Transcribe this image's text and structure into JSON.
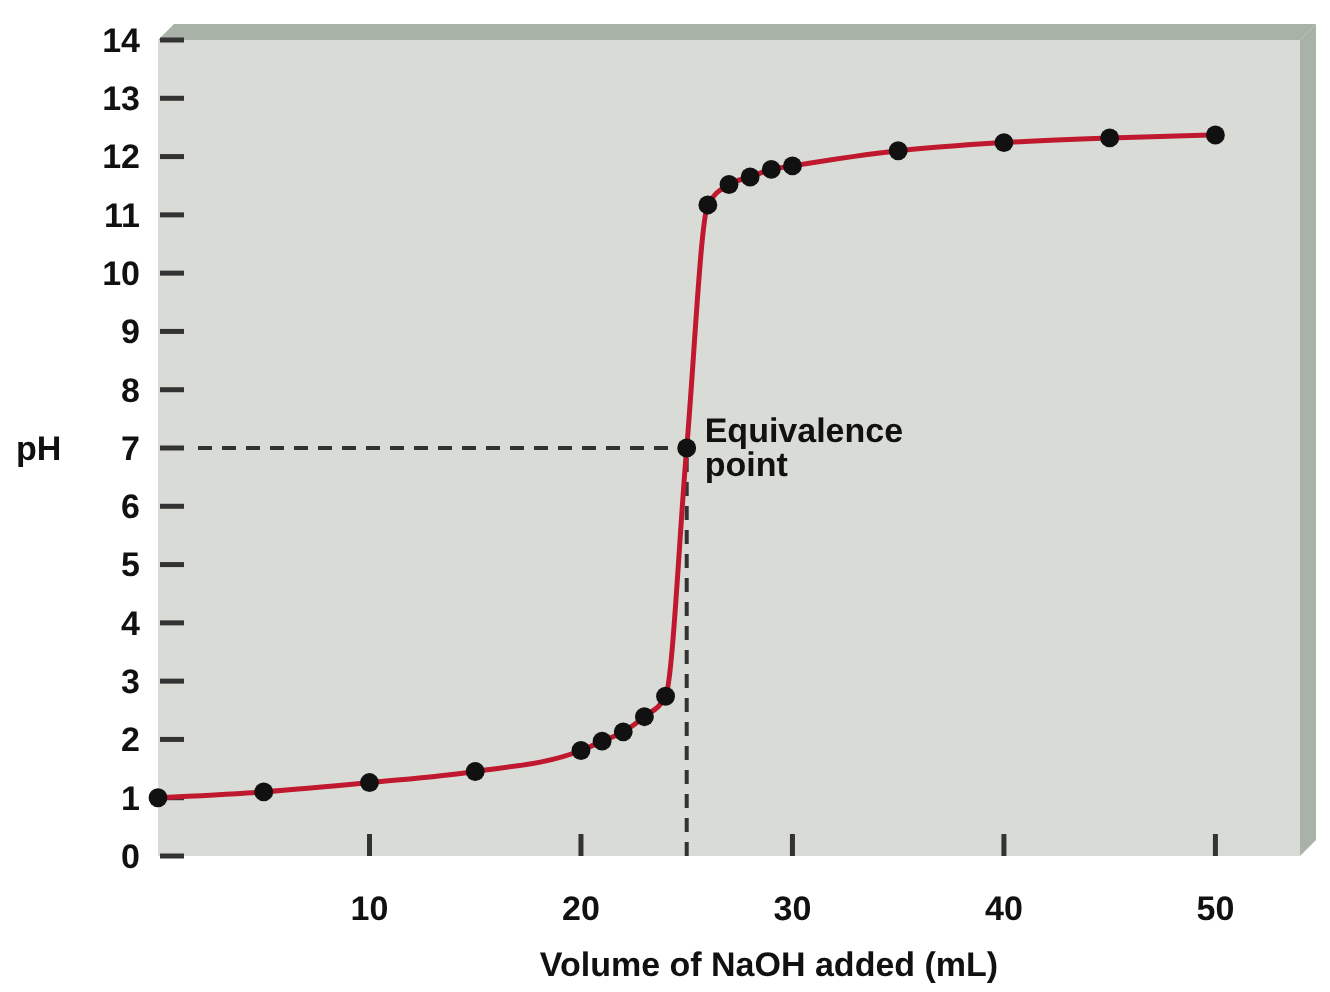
{
  "chart_data": {
    "type": "line",
    "xlabel": "Volume of NaOH added (mL)",
    "ylabel": "pH",
    "x": [
      0,
      5,
      10,
      15,
      20,
      21,
      22,
      23,
      24,
      25,
      26,
      27,
      28,
      29,
      30,
      35,
      40,
      45,
      50
    ],
    "series": [
      {
        "color": "#c0182f",
        "values": [
          1.0,
          1.1,
          1.26,
          1.45,
          1.81,
          1.97,
          2.13,
          2.39,
          2.74,
          7,
          11.17,
          11.52,
          11.65,
          11.78,
          11.84,
          12.1,
          12.24,
          12.32,
          12.37
        ]
      }
    ],
    "xlim": [
      0,
      54
    ],
    "ylim": [
      0,
      14
    ],
    "xticks": [
      10,
      20,
      30,
      40,
      50
    ],
    "yticks": [
      0,
      1,
      2,
      3,
      4,
      5,
      6,
      7,
      8,
      9,
      10,
      11,
      12,
      13,
      14
    ],
    "marker": "circle",
    "grid": false,
    "ref_lines": [
      {
        "axis": "y",
        "value": 7
      },
      {
        "axis": "x",
        "value": 25
      }
    ],
    "annotations": [
      {
        "text": "Equivalence point",
        "x": 25,
        "y": 7
      }
    ]
  }
}
